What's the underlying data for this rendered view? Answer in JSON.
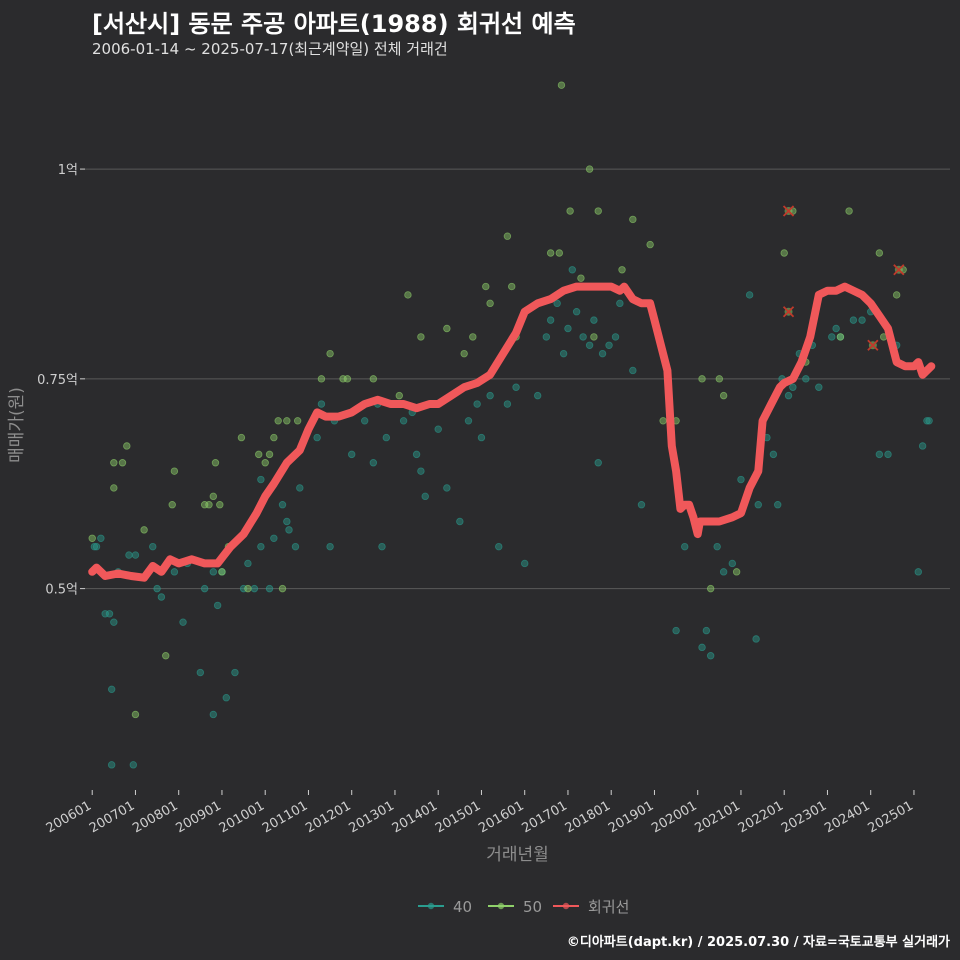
{
  "header": {
    "title": "[서산시] 동문 주공 아파트(1988) 회귀선 예측",
    "subtitle": "2006-01-14 ~ 2025-07-17(최근계약일) 전체 거래건"
  },
  "footer": {
    "credit": "©디아파트(dapt.kr) / 2025.07.30 / 자료=국토교통부 실거래가"
  },
  "colors": {
    "background": "#2b2b2d",
    "grid": "#5a5a5a",
    "s40": "#2a9d8f",
    "s50": "#8fd16a",
    "regression": "#f0585a",
    "outlier": "#c0392b"
  },
  "chart_data": {
    "type": "scatter",
    "title": "[서산시] 동문 주공 아파트(1988) 회귀선 예측",
    "subtitle": "2006-01-14 ~ 2025-07-17(최근계약일) 전체 거래건",
    "xlabel": "거래년월",
    "ylabel": "매매가(원)",
    "xlim": [
      "2006-01",
      "2025-08"
    ],
    "ylim": [
      0.26,
      1.13
    ],
    "y_ticks": [
      {
        "value": 0.5,
        "label": "0.5억"
      },
      {
        "value": 0.75,
        "label": "0.75억"
      },
      {
        "value": 1.0,
        "label": "1억"
      }
    ],
    "x_ticks": [
      "200601",
      "200701",
      "200801",
      "200901",
      "201001",
      "201101",
      "201201",
      "201301",
      "201401",
      "201501",
      "201601",
      "201701",
      "201801",
      "201901",
      "202001",
      "202101",
      "202201",
      "202301",
      "202401",
      "202501"
    ],
    "grid": true,
    "legend_position": "bottom",
    "legend": [
      {
        "name": "40",
        "key": "s40"
      },
      {
        "name": "50",
        "key": "s50"
      },
      {
        "name": "회귀선",
        "key": "regression"
      }
    ],
    "series": [
      {
        "name": "40",
        "key": "s40",
        "points": [
          [
            2006.05,
            0.55
          ],
          [
            2006.1,
            0.55
          ],
          [
            2006.2,
            0.56
          ],
          [
            2006.3,
            0.47
          ],
          [
            2006.4,
            0.47
          ],
          [
            2006.45,
            0.38
          ],
          [
            2006.5,
            0.46
          ],
          [
            2006.45,
            0.29
          ],
          [
            2006.6,
            0.52
          ],
          [
            2006.85,
            0.54
          ],
          [
            2006.95,
            0.29
          ],
          [
            2007.0,
            0.54
          ],
          [
            2007.4,
            0.55
          ],
          [
            2007.5,
            0.5
          ],
          [
            2007.6,
            0.49
          ],
          [
            2007.9,
            0.52
          ],
          [
            2008.2,
            0.53
          ],
          [
            2008.1,
            0.46
          ],
          [
            2008.5,
            0.4
          ],
          [
            2008.6,
            0.5
          ],
          [
            2008.8,
            0.52
          ],
          [
            2008.9,
            0.48
          ],
          [
            2008.8,
            0.35
          ],
          [
            2009.0,
            0.52
          ],
          [
            2009.1,
            0.37
          ],
          [
            2009.3,
            0.4
          ],
          [
            2009.5,
            0.5
          ],
          [
            2009.6,
            0.53
          ],
          [
            2009.75,
            0.5
          ],
          [
            2009.9,
            0.55
          ],
          [
            2009.9,
            0.63
          ],
          [
            2010.1,
            0.5
          ],
          [
            2010.2,
            0.56
          ],
          [
            2010.4,
            0.6
          ],
          [
            2010.5,
            0.58
          ],
          [
            2010.55,
            0.57
          ],
          [
            2010.7,
            0.55
          ],
          [
            2010.8,
            0.62
          ],
          [
            2011.2,
            0.68
          ],
          [
            2011.3,
            0.72
          ],
          [
            2011.5,
            0.55
          ],
          [
            2011.6,
            0.7
          ],
          [
            2012.0,
            0.66
          ],
          [
            2012.3,
            0.7
          ],
          [
            2012.5,
            0.65
          ],
          [
            2012.6,
            0.72
          ],
          [
            2012.7,
            0.55
          ],
          [
            2012.8,
            0.68
          ],
          [
            2013.2,
            0.7
          ],
          [
            2013.4,
            0.71
          ],
          [
            2013.5,
            0.66
          ],
          [
            2013.6,
            0.64
          ],
          [
            2013.7,
            0.61
          ],
          [
            2014.0,
            0.69
          ],
          [
            2014.2,
            0.62
          ],
          [
            2014.5,
            0.58
          ],
          [
            2014.7,
            0.7
          ],
          [
            2014.9,
            0.72
          ],
          [
            2015.0,
            0.68
          ],
          [
            2015.2,
            0.73
          ],
          [
            2015.4,
            0.55
          ],
          [
            2015.6,
            0.72
          ],
          [
            2015.8,
            0.74
          ],
          [
            2016.0,
            0.53
          ],
          [
            2016.3,
            0.73
          ],
          [
            2016.5,
            0.8
          ],
          [
            2016.6,
            0.82
          ],
          [
            2016.75,
            0.84
          ],
          [
            2016.9,
            0.78
          ],
          [
            2017.0,
            0.81
          ],
          [
            2017.1,
            0.88
          ],
          [
            2017.2,
            0.83
          ],
          [
            2017.35,
            0.8
          ],
          [
            2017.5,
            0.79
          ],
          [
            2017.6,
            0.82
          ],
          [
            2017.7,
            0.65
          ],
          [
            2017.8,
            0.78
          ],
          [
            2017.95,
            0.79
          ],
          [
            2018.1,
            0.8
          ],
          [
            2018.2,
            0.84
          ],
          [
            2018.5,
            0.76
          ],
          [
            2018.7,
            0.6
          ],
          [
            2019.35,
            0.7
          ],
          [
            2019.5,
            0.45
          ],
          [
            2019.7,
            0.55
          ],
          [
            2020.1,
            0.43
          ],
          [
            2020.2,
            0.45
          ],
          [
            2020.3,
            0.42
          ],
          [
            2020.45,
            0.55
          ],
          [
            2020.6,
            0.52
          ],
          [
            2020.8,
            0.53
          ],
          [
            2021.0,
            0.63
          ],
          [
            2021.2,
            0.85
          ],
          [
            2021.35,
            0.44
          ],
          [
            2021.4,
            0.6
          ],
          [
            2021.6,
            0.68
          ],
          [
            2021.75,
            0.66
          ],
          [
            2021.85,
            0.6
          ],
          [
            2021.95,
            0.75
          ],
          [
            2022.1,
            0.73
          ],
          [
            2022.2,
            0.74
          ],
          [
            2022.35,
            0.78
          ],
          [
            2022.5,
            0.75
          ],
          [
            2022.65,
            0.79
          ],
          [
            2022.8,
            0.74
          ],
          [
            2023.1,
            0.8
          ],
          [
            2023.2,
            0.81
          ],
          [
            2023.3,
            0.8
          ],
          [
            2023.6,
            0.82
          ],
          [
            2023.8,
            0.82
          ],
          [
            2024.0,
            0.83
          ],
          [
            2024.2,
            0.66
          ],
          [
            2024.4,
            0.66
          ],
          [
            2024.6,
            0.79
          ],
          [
            2025.1,
            0.52
          ],
          [
            2025.2,
            0.67
          ],
          [
            2025.3,
            0.7
          ],
          [
            2025.35,
            0.7
          ]
        ]
      },
      {
        "name": "50",
        "key": "s50",
        "points": [
          [
            2006.0,
            0.56
          ],
          [
            2006.5,
            0.62
          ],
          [
            2006.5,
            0.65
          ],
          [
            2006.7,
            0.65
          ],
          [
            2006.8,
            0.67
          ],
          [
            2007.0,
            0.35
          ],
          [
            2007.2,
            0.57
          ],
          [
            2007.7,
            0.42
          ],
          [
            2007.85,
            0.6
          ],
          [
            2007.9,
            0.64
          ],
          [
            2008.6,
            0.6
          ],
          [
            2008.7,
            0.6
          ],
          [
            2008.8,
            0.61
          ],
          [
            2008.85,
            0.65
          ],
          [
            2008.95,
            0.6
          ],
          [
            2009.0,
            0.52
          ],
          [
            2009.15,
            0.55
          ],
          [
            2009.45,
            0.68
          ],
          [
            2009.6,
            0.5
          ],
          [
            2009.85,
            0.66
          ],
          [
            2010.0,
            0.65
          ],
          [
            2010.1,
            0.66
          ],
          [
            2010.2,
            0.68
          ],
          [
            2010.3,
            0.7
          ],
          [
            2010.4,
            0.5
          ],
          [
            2010.5,
            0.7
          ],
          [
            2010.75,
            0.7
          ],
          [
            2011.3,
            0.75
          ],
          [
            2011.5,
            0.78
          ],
          [
            2011.8,
            0.75
          ],
          [
            2011.9,
            0.75
          ],
          [
            2012.5,
            0.75
          ],
          [
            2013.1,
            0.73
          ],
          [
            2013.3,
            0.85
          ],
          [
            2013.6,
            0.8
          ],
          [
            2014.2,
            0.81
          ],
          [
            2014.6,
            0.78
          ],
          [
            2014.8,
            0.8
          ],
          [
            2015.1,
            0.86
          ],
          [
            2015.2,
            0.84
          ],
          [
            2015.6,
            0.92
          ],
          [
            2015.7,
            0.86
          ],
          [
            2015.8,
            0.8
          ],
          [
            2016.6,
            0.9
          ],
          [
            2016.8,
            0.9
          ],
          [
            2016.85,
            1.1
          ],
          [
            2017.05,
            0.95
          ],
          [
            2017.3,
            0.87
          ],
          [
            2017.5,
            1.0
          ],
          [
            2017.6,
            0.8
          ],
          [
            2017.7,
            0.95
          ],
          [
            2018.25,
            0.88
          ],
          [
            2018.5,
            0.94
          ],
          [
            2018.9,
            0.91
          ],
          [
            2019.2,
            0.7
          ],
          [
            2019.5,
            0.7
          ],
          [
            2020.1,
            0.75
          ],
          [
            2020.3,
            0.5
          ],
          [
            2020.5,
            0.75
          ],
          [
            2020.6,
            0.73
          ],
          [
            2020.9,
            0.52
          ],
          [
            2022.0,
            0.9
          ],
          [
            2022.2,
            0.95
          ],
          [
            2022.5,
            0.77
          ],
          [
            2023.3,
            0.8
          ],
          [
            2023.5,
            0.95
          ],
          [
            2024.2,
            0.9
          ],
          [
            2024.3,
            0.8
          ],
          [
            2024.6,
            0.85
          ],
          [
            2024.75,
            0.88
          ]
        ]
      },
      {
        "name": "outliers",
        "key": "outlier",
        "points": [
          [
            2022.1,
            0.95
          ],
          [
            2022.1,
            0.83
          ],
          [
            2024.05,
            0.79
          ],
          [
            2024.65,
            0.88
          ]
        ]
      },
      {
        "name": "회귀선",
        "key": "regression",
        "points": [
          [
            2006.0,
            0.52
          ],
          [
            2006.1,
            0.525
          ],
          [
            2006.3,
            0.515
          ],
          [
            2006.6,
            0.518
          ],
          [
            2006.9,
            0.515
          ],
          [
            2007.2,
            0.513
          ],
          [
            2007.4,
            0.527
          ],
          [
            2007.6,
            0.52
          ],
          [
            2007.8,
            0.535
          ],
          [
            2008.0,
            0.53
          ],
          [
            2008.3,
            0.535
          ],
          [
            2008.6,
            0.53
          ],
          [
            2008.9,
            0.53
          ],
          [
            2009.2,
            0.55
          ],
          [
            2009.5,
            0.565
          ],
          [
            2009.8,
            0.59
          ],
          [
            2010.0,
            0.61
          ],
          [
            2010.2,
            0.625
          ],
          [
            2010.5,
            0.65
          ],
          [
            2010.8,
            0.665
          ],
          [
            2011.0,
            0.69
          ],
          [
            2011.2,
            0.71
          ],
          [
            2011.4,
            0.705
          ],
          [
            2011.7,
            0.705
          ],
          [
            2012.0,
            0.71
          ],
          [
            2012.3,
            0.72
          ],
          [
            2012.6,
            0.725
          ],
          [
            2012.9,
            0.72
          ],
          [
            2013.2,
            0.72
          ],
          [
            2013.5,
            0.715
          ],
          [
            2013.8,
            0.72
          ],
          [
            2014.0,
            0.72
          ],
          [
            2014.3,
            0.73
          ],
          [
            2014.6,
            0.74
          ],
          [
            2014.9,
            0.745
          ],
          [
            2015.2,
            0.755
          ],
          [
            2015.5,
            0.78
          ],
          [
            2015.8,
            0.805
          ],
          [
            2016.0,
            0.83
          ],
          [
            2016.3,
            0.84
          ],
          [
            2016.6,
            0.845
          ],
          [
            2016.9,
            0.855
          ],
          [
            2017.2,
            0.86
          ],
          [
            2017.5,
            0.86
          ],
          [
            2017.8,
            0.86
          ],
          [
            2018.0,
            0.86
          ],
          [
            2018.2,
            0.855
          ],
          [
            2018.3,
            0.86
          ],
          [
            2018.5,
            0.845
          ],
          [
            2018.7,
            0.84
          ],
          [
            2018.9,
            0.84
          ],
          [
            2019.0,
            0.82
          ],
          [
            2019.2,
            0.78
          ],
          [
            2019.3,
            0.76
          ],
          [
            2019.4,
            0.67
          ],
          [
            2019.5,
            0.64
          ],
          [
            2019.6,
            0.595
          ],
          [
            2019.7,
            0.6
          ],
          [
            2019.8,
            0.6
          ],
          [
            2019.9,
            0.585
          ],
          [
            2020.0,
            0.565
          ],
          [
            2020.05,
            0.58
          ],
          [
            2020.2,
            0.58
          ],
          [
            2020.5,
            0.58
          ],
          [
            2020.8,
            0.585
          ],
          [
            2021.0,
            0.59
          ],
          [
            2021.2,
            0.62
          ],
          [
            2021.4,
            0.64
          ],
          [
            2021.5,
            0.7
          ],
          [
            2021.7,
            0.72
          ],
          [
            2021.9,
            0.74
          ],
          [
            2022.0,
            0.745
          ],
          [
            2022.2,
            0.75
          ],
          [
            2022.4,
            0.77
          ],
          [
            2022.6,
            0.8
          ],
          [
            2022.8,
            0.85
          ],
          [
            2023.0,
            0.855
          ],
          [
            2023.2,
            0.855
          ],
          [
            2023.4,
            0.86
          ],
          [
            2023.6,
            0.855
          ],
          [
            2023.8,
            0.85
          ],
          [
            2024.0,
            0.84
          ],
          [
            2024.2,
            0.825
          ],
          [
            2024.4,
            0.81
          ],
          [
            2024.6,
            0.77
          ],
          [
            2024.8,
            0.765
          ],
          [
            2025.0,
            0.765
          ],
          [
            2025.1,
            0.77
          ],
          [
            2025.2,
            0.755
          ],
          [
            2025.4,
            0.765
          ]
        ]
      }
    ]
  }
}
